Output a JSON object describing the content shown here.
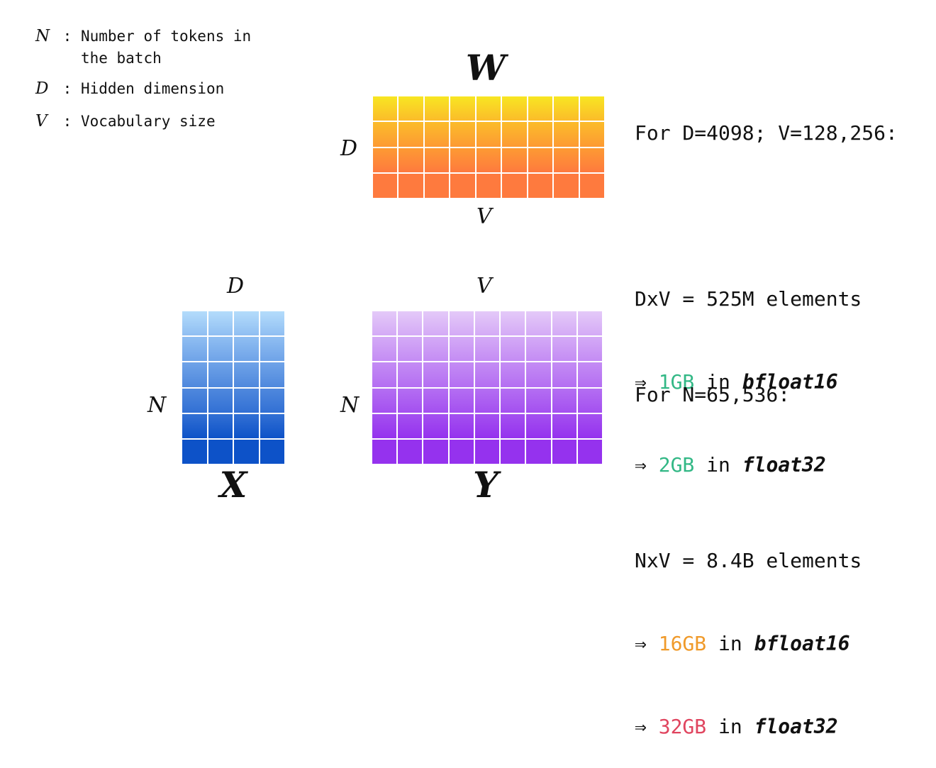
{
  "legend": [
    {
      "symbol": "N",
      "sep": " : ",
      "text": "Number of tokens in\nthe batch"
    },
    {
      "symbol": "D",
      "sep": " : ",
      "text": "Hidden dimension"
    },
    {
      "symbol": "V",
      "sep": " : ",
      "text": "Vocabulary size"
    }
  ],
  "matrices": {
    "W": {
      "name": "W",
      "row_dim": "D",
      "col_dim": "V",
      "rows": 4,
      "cols": 9,
      "colors": [
        "#f8e622",
        "#fbbc2a",
        "#fd9a33",
        "#fe7a3e"
      ]
    },
    "X": {
      "name": "X",
      "row_dim": "N",
      "col_dim": "D",
      "rows": 6,
      "cols": 4,
      "colors": [
        "#b4dcfb",
        "#8fbef2",
        "#6fa3e8",
        "#4f88dd",
        "#3270d4",
        "#0d52c8"
      ]
    },
    "Y": {
      "name": "Y",
      "row_dim": "N",
      "col_dim": "V",
      "rows": 6,
      "cols": 9,
      "colors": [
        "#e4c9f8",
        "#d4aaf6",
        "#c48cf4",
        "#b46ef2",
        "#a450f0",
        "#9532ee"
      ]
    }
  },
  "info_w": {
    "header": "For D=4098; V=128,256:",
    "elements": "DxV = 525M elements",
    "arrow": "⇒",
    "bf16_size": "1GB",
    "bf16_in": " in ",
    "bf16_type": "bfloat16",
    "f32_size": "2GB",
    "f32_in": " in ",
    "f32_type": "float32"
  },
  "info_y": {
    "header": "For N=65,536:",
    "elements": "NxV = 8.4B elements",
    "arrow": "⇒",
    "bf16_size": "16GB",
    "bf16_in": " in ",
    "bf16_type": "bfloat16",
    "f32_size": "32GB",
    "f32_in": " in ",
    "f32_type": "float32"
  },
  "colors": {
    "green": "#33b886",
    "orange": "#f09a2a",
    "red": "#e0455f"
  }
}
